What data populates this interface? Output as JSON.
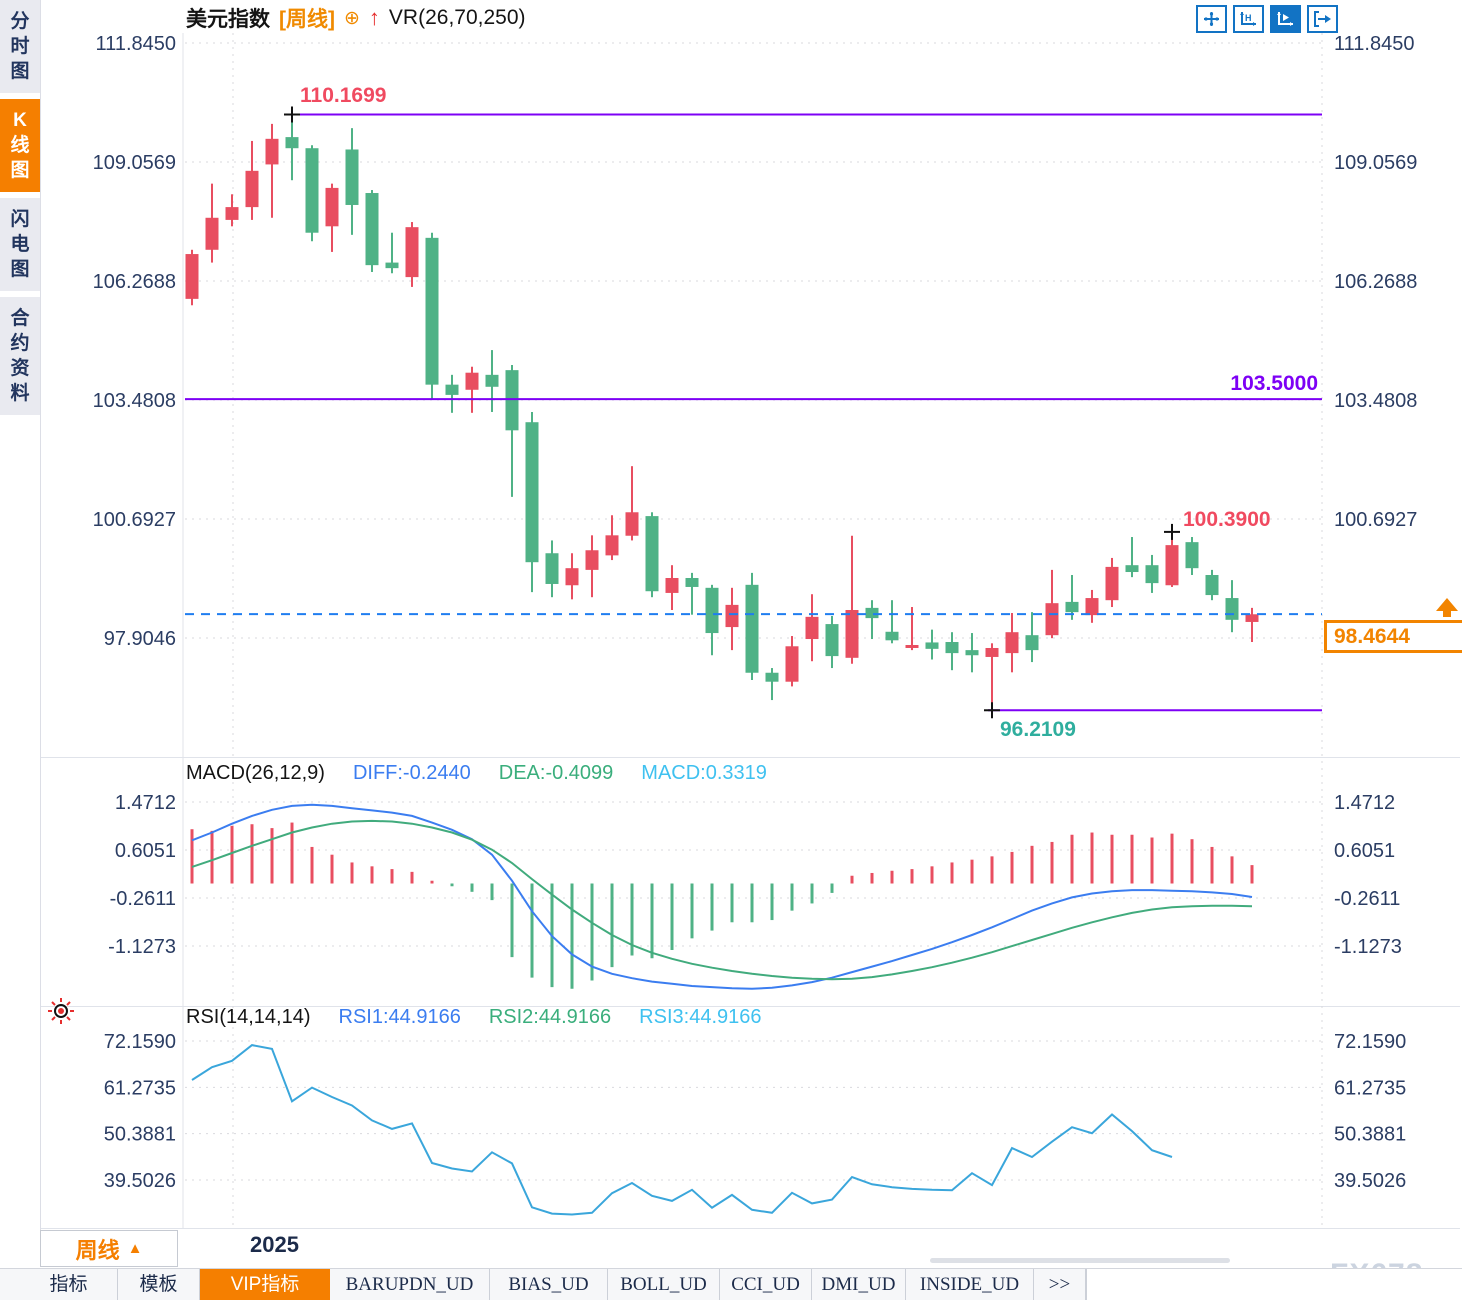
{
  "window": {
    "watermark": "FX678"
  },
  "sidebar": {
    "tabs": [
      {
        "label": "分时图",
        "active": false
      },
      {
        "label": "K线图",
        "active": true
      },
      {
        "label": "闪电图",
        "active": false
      },
      {
        "label": "合约资料",
        "active": false
      }
    ]
  },
  "header": {
    "title": "美元指数",
    "period_tag": "[周线]",
    "plus_icon": "⊕",
    "up_arrow": "↑",
    "indicator": "VR(26,70,250)"
  },
  "toolbar": {
    "icons": [
      "move-crosshair",
      "axis-scale-h",
      "axis-play",
      "exit-right"
    ]
  },
  "overlays": {
    "high_label": "110.1699",
    "mid_label": "103.5000",
    "low_label": "96.2109",
    "recent_high_label": "100.3900"
  },
  "price_tag": {
    "value": "98.4644"
  },
  "macd_header": {
    "name": "MACD(26,12,9)",
    "diff": "DIFF:-0.2440",
    "dea": "DEA:-0.4099",
    "macd": "MACD:0.3319"
  },
  "rsi_header": {
    "name": "RSI(14,14,14)",
    "rsi1": "RSI1:44.9166",
    "rsi2": "RSI2:44.9166",
    "rsi3": "RSI3:44.9166"
  },
  "bottom": {
    "period_button": "周线",
    "period_arrow": "▲",
    "year_label": "2025",
    "tabs": [
      {
        "label": "指标",
        "active": false
      },
      {
        "label": "模板",
        "active": false
      },
      {
        "label": "VIP指标",
        "active": true
      },
      {
        "label": "BARUPDN_UD",
        "active": false
      },
      {
        "label": "BIAS_UD",
        "active": false
      },
      {
        "label": "BOLL_UD",
        "active": false
      },
      {
        "label": "CCI_UD",
        "active": false
      },
      {
        "label": "DMI_UD",
        "active": false
      },
      {
        "label": "INSIDE_UD",
        "active": false
      },
      {
        "label": ">>",
        "active": false
      }
    ]
  },
  "chart_data": {
    "type": "candlestick",
    "panes": [
      "price",
      "MACD",
      "RSI"
    ],
    "instrument": "美元指数",
    "period": "周线",
    "price_ticks": [
      111.845,
      109.0569,
      106.2688,
      103.4808,
      100.6927,
      97.9046
    ],
    "macd_ticks": [
      1.4712,
      0.6051,
      -0.2611,
      -1.1273
    ],
    "rsi_ticks": [
      72.159,
      61.2735,
      50.3881,
      39.5026
    ],
    "levels": {
      "resistance": 110.1699,
      "mid": 103.5,
      "support": 96.2109,
      "last_price": 98.4644,
      "recent_high": 100.39
    },
    "colors": {
      "up": "#e84e60",
      "down": "#4fb286",
      "diff_line": "#3b7df0",
      "dea_line": "#41ab7d",
      "rsi_line": "#3aa6db",
      "level_line": "#7d00f5",
      "last_price_line": "#1f7df0",
      "accent": "#f57f00"
    },
    "year_break_index": 3,
    "markers": [
      {
        "index": 5,
        "at": "high"
      },
      {
        "index": 40,
        "at": "low"
      },
      {
        "index": 49,
        "at": "high"
      }
    ],
    "candles_ohlc": [
      [
        105.85,
        107.0,
        105.7,
        106.9
      ],
      [
        107.0,
        108.55,
        106.7,
        107.75
      ],
      [
        107.7,
        108.3,
        107.55,
        108.0
      ],
      [
        108.0,
        109.55,
        107.7,
        108.85
      ],
      [
        109.0,
        109.95,
        107.75,
        109.6
      ],
      [
        109.64,
        110.1699,
        108.63,
        109.38
      ],
      [
        109.38,
        109.45,
        107.2,
        107.4
      ],
      [
        107.55,
        108.55,
        106.95,
        108.45
      ],
      [
        109.35,
        109.85,
        107.35,
        108.05
      ],
      [
        108.33,
        108.4,
        106.48,
        106.64
      ],
      [
        106.7,
        107.4,
        106.45,
        106.57
      ],
      [
        106.36,
        107.65,
        106.13,
        107.53
      ],
      [
        107.28,
        107.4,
        103.48,
        103.84
      ],
      [
        103.84,
        104.07,
        103.18,
        103.6
      ],
      [
        103.72,
        104.26,
        103.18,
        104.12
      ],
      [
        104.07,
        104.65,
        103.2,
        103.79
      ],
      [
        104.18,
        104.3,
        101.21,
        102.77
      ],
      [
        102.96,
        103.2,
        98.98,
        99.68
      ],
      [
        99.89,
        100.19,
        98.86,
        99.17
      ],
      [
        99.14,
        99.89,
        98.81,
        99.54
      ],
      [
        99.5,
        100.31,
        98.86,
        99.96
      ],
      [
        99.84,
        100.78,
        99.73,
        100.31
      ],
      [
        100.3,
        101.93,
        100.19,
        100.85
      ],
      [
        100.76,
        100.85,
        98.86,
        99.0
      ],
      [
        98.96,
        99.61,
        98.56,
        99.31
      ],
      [
        99.31,
        99.43,
        98.45,
        99.1
      ],
      [
        99.08,
        99.15,
        97.5,
        98.02
      ],
      [
        98.16,
        99.08,
        97.62,
        98.68
      ],
      [
        99.15,
        99.43,
        96.92,
        97.09
      ],
      [
        97.09,
        97.2,
        96.45,
        96.88
      ],
      [
        96.88,
        97.95,
        96.77,
        97.71
      ],
      [
        97.88,
        98.93,
        97.36,
        98.4
      ],
      [
        98.23,
        98.42,
        97.2,
        97.48
      ],
      [
        97.44,
        100.3,
        97.3,
        98.56
      ],
      [
        98.61,
        98.79,
        97.88,
        98.37
      ],
      [
        98.05,
        98.79,
        97.78,
        97.85
      ],
      [
        97.67,
        98.63,
        97.62,
        97.74
      ],
      [
        97.8,
        98.1,
        97.4,
        97.65
      ],
      [
        97.81,
        98.04,
        97.15,
        97.55
      ],
      [
        97.62,
        98.02,
        97.1,
        97.5
      ],
      [
        97.46,
        97.78,
        96.2109,
        97.67
      ],
      [
        97.55,
        98.49,
        97.1,
        98.04
      ],
      [
        97.97,
        98.51,
        97.34,
        97.62
      ],
      [
        97.97,
        99.5,
        97.9,
        98.72
      ],
      [
        98.75,
        99.38,
        98.33,
        98.51
      ],
      [
        98.44,
        99.03,
        98.26,
        98.84
      ],
      [
        98.79,
        99.78,
        98.63,
        99.57
      ],
      [
        99.61,
        100.27,
        99.33,
        99.45
      ],
      [
        99.61,
        99.85,
        98.96,
        99.19
      ],
      [
        99.14,
        100.39,
        99.1,
        100.08
      ],
      [
        100.15,
        100.27,
        99.38,
        99.54
      ],
      [
        99.38,
        99.5,
        98.79,
        98.91
      ],
      [
        98.84,
        99.26,
        98.04,
        98.33
      ],
      [
        98.28,
        98.61,
        97.81,
        98.46
      ]
    ],
    "macd": {
      "diff": [
        0.78,
        0.92,
        1.08,
        1.22,
        1.33,
        1.4,
        1.42,
        1.4,
        1.36,
        1.32,
        1.28,
        1.22,
        1.1,
        0.97,
        0.8,
        0.52,
        0.05,
        -0.5,
        -0.95,
        -1.28,
        -1.5,
        -1.63,
        -1.71,
        -1.77,
        -1.81,
        -1.85,
        -1.87,
        -1.89,
        -1.9,
        -1.88,
        -1.84,
        -1.78,
        -1.7,
        -1.6,
        -1.5,
        -1.4,
        -1.29,
        -1.18,
        -1.06,
        -0.93,
        -0.79,
        -0.64,
        -0.49,
        -0.36,
        -0.25,
        -0.18,
        -0.14,
        -0.12,
        -0.12,
        -0.13,
        -0.14,
        -0.16,
        -0.19,
        -0.244
      ],
      "dea": [
        0.3,
        0.42,
        0.55,
        0.68,
        0.8,
        0.92,
        1.01,
        1.08,
        1.12,
        1.13,
        1.12,
        1.08,
        1.01,
        0.92,
        0.79,
        0.61,
        0.37,
        0.08,
        -0.2,
        -0.47,
        -0.71,
        -0.93,
        -1.11,
        -1.25,
        -1.36,
        -1.45,
        -1.52,
        -1.58,
        -1.63,
        -1.67,
        -1.7,
        -1.72,
        -1.73,
        -1.72,
        -1.69,
        -1.64,
        -1.58,
        -1.51,
        -1.43,
        -1.34,
        -1.24,
        -1.13,
        -1.02,
        -0.91,
        -0.8,
        -0.7,
        -0.61,
        -0.53,
        -0.47,
        -0.43,
        -0.41,
        -0.4,
        -0.4,
        -0.4099
      ],
      "hist": [
        0.98,
        0.95,
        1.04,
        1.07,
        1.0,
        1.1,
        0.66,
        0.52,
        0.38,
        0.31,
        0.26,
        0.21,
        0.05,
        -0.05,
        -0.15,
        -0.3,
        -1.33,
        -1.7,
        -1.87,
        -1.9,
        -1.75,
        -1.51,
        -1.3,
        -1.35,
        -1.2,
        -0.99,
        -0.85,
        -0.7,
        -0.7,
        -0.66,
        -0.49,
        -0.36,
        -0.17,
        0.14,
        0.19,
        0.23,
        0.26,
        0.31,
        0.38,
        0.43,
        0.49,
        0.57,
        0.68,
        0.75,
        0.88,
        0.92,
        0.88,
        0.88,
        0.83,
        0.9,
        0.8,
        0.66,
        0.49,
        0.3319
      ]
    },
    "rsi": [
      63.0,
      66.0,
      67.5,
      71.2,
      70.3,
      58.0,
      61.2,
      59.0,
      57.0,
      53.5,
      51.5,
      52.8,
      43.5,
      42.2,
      41.5,
      46.0,
      43.4,
      33.1,
      31.6,
      31.4,
      31.8,
      36.4,
      38.8,
      35.8,
      34.6,
      37.2,
      33.0,
      36.0,
      32.5,
      31.8,
      36.5,
      34.0,
      34.9,
      40.2,
      38.5,
      37.8,
      37.4,
      37.2,
      37.1,
      41.1,
      38.3,
      47.0,
      44.9,
      48.5,
      51.9,
      50.5,
      54.9,
      51.0,
      46.5,
      44.9166
    ]
  }
}
